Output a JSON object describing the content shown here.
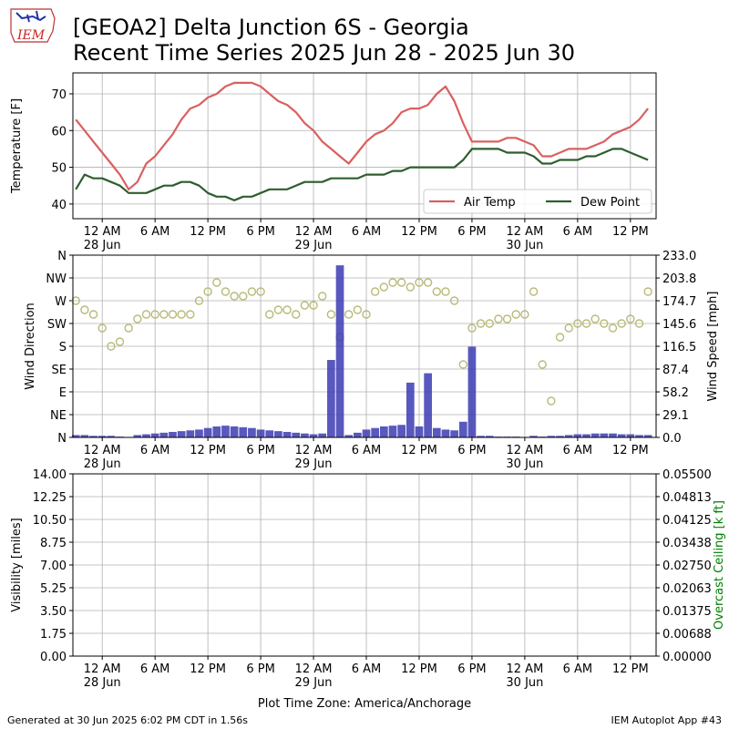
{
  "header": {
    "title_lines": [
      "[GEOA2] Delta Junction 6S - Georgia",
      "Recent Time Series 2025 Jun 28 - 2025 Jun 30"
    ],
    "logo": "IEM"
  },
  "footer": {
    "left": "Generated at 30 Jun 2025 6:02 PM CDT in 1.56s",
    "right": "IEM Autoplot App #43"
  },
  "chart_data": [
    {
      "type": "line",
      "ylabel": "Temperature [F]",
      "x": [
        "2025-06-27 21:00",
        "2025-06-27 22:00",
        "2025-06-27 23:00",
        "2025-06-28 00:00",
        "2025-06-28 01:00",
        "2025-06-28 02:00",
        "2025-06-28 03:00",
        "2025-06-28 04:00",
        "2025-06-28 05:00",
        "2025-06-28 06:00",
        "2025-06-28 07:00",
        "2025-06-28 08:00",
        "2025-06-28 09:00",
        "2025-06-28 10:00",
        "2025-06-28 11:00",
        "2025-06-28 12:00",
        "2025-06-28 13:00",
        "2025-06-28 14:00",
        "2025-06-28 15:00",
        "2025-06-28 16:00",
        "2025-06-28 17:00",
        "2025-06-28 18:00",
        "2025-06-28 19:00",
        "2025-06-28 20:00",
        "2025-06-28 21:00",
        "2025-06-28 22:00",
        "2025-06-28 23:00",
        "2025-06-29 00:00",
        "2025-06-29 01:00",
        "2025-06-29 02:00",
        "2025-06-29 03:00",
        "2025-06-29 04:00",
        "2025-06-29 05:00",
        "2025-06-29 06:00",
        "2025-06-29 07:00",
        "2025-06-29 08:00",
        "2025-06-29 09:00",
        "2025-06-29 10:00",
        "2025-06-29 11:00",
        "2025-06-29 12:00",
        "2025-06-29 13:00",
        "2025-06-29 14:00",
        "2025-06-29 15:00",
        "2025-06-29 16:00",
        "2025-06-29 17:00",
        "2025-06-29 18:00",
        "2025-06-29 19:00",
        "2025-06-29 20:00",
        "2025-06-29 21:00",
        "2025-06-29 22:00",
        "2025-06-29 23:00",
        "2025-06-30 00:00",
        "2025-06-30 01:00",
        "2025-06-30 02:00",
        "2025-06-30 03:00",
        "2025-06-30 04:00",
        "2025-06-30 05:00",
        "2025-06-30 06:00",
        "2025-06-30 07:00",
        "2025-06-30 08:00",
        "2025-06-30 09:00",
        "2025-06-30 10:00",
        "2025-06-30 11:00",
        "2025-06-30 12:00",
        "2025-06-30 13:00",
        "2025-06-30 14:00"
      ],
      "series": [
        {
          "name": "Air Temp",
          "color": "#d9605f",
          "values": [
            63,
            60,
            57,
            54,
            51,
            48,
            44,
            46,
            51,
            53,
            56,
            59,
            63,
            66,
            67,
            69,
            70,
            72,
            73,
            73,
            73,
            72,
            70,
            68,
            67,
            65,
            62,
            60,
            57,
            55,
            53,
            51,
            54,
            57,
            59,
            60,
            62,
            65,
            66,
            66,
            67,
            70,
            72,
            68,
            62,
            57,
            57,
            57,
            57,
            58,
            58,
            57,
            56,
            53,
            53,
            54,
            55,
            55,
            55,
            56,
            57,
            59,
            60,
            61,
            63,
            66
          ]
        },
        {
          "name": "Dew Point",
          "color": "#2e5e2e",
          "values": [
            44,
            48,
            47,
            47,
            46,
            45,
            43,
            43,
            43,
            44,
            45,
            45,
            46,
            46,
            45,
            43,
            42,
            42,
            41,
            42,
            42,
            43,
            44,
            44,
            44,
            45,
            46,
            46,
            46,
            47,
            47,
            47,
            47,
            48,
            48,
            48,
            49,
            49,
            50,
            50,
            50,
            50,
            50,
            50,
            52,
            55,
            55,
            55,
            55,
            54,
            54,
            54,
            53,
            51,
            51,
            52,
            52,
            52,
            53,
            53,
            54,
            55,
            55,
            54,
            53,
            52
          ]
        }
      ],
      "xlim": [
        "2025-06-27 20:40",
        "2025-06-30 14:55"
      ],
      "xticks": [
        {
          "value": "2025-06-28 00:00",
          "label": "12 AM\n28 Jun"
        },
        {
          "value": "2025-06-28 06:00",
          "label": "6 AM"
        },
        {
          "value": "2025-06-28 12:00",
          "label": "12 PM"
        },
        {
          "value": "2025-06-28 18:00",
          "label": "6 PM"
        },
        {
          "value": "2025-06-29 00:00",
          "label": "12 AM\n29 Jun"
        },
        {
          "value": "2025-06-29 06:00",
          "label": "6 AM"
        },
        {
          "value": "2025-06-29 12:00",
          "label": "12 PM"
        },
        {
          "value": "2025-06-29 18:00",
          "label": "6 PM"
        },
        {
          "value": "2025-06-30 00:00",
          "label": "12 AM\n30 Jun"
        },
        {
          "value": "2025-06-30 06:00",
          "label": "6 AM"
        },
        {
          "value": "2025-06-30 12:00",
          "label": "12 PM"
        }
      ],
      "ylim": [
        36,
        75.7
      ],
      "yticks": [
        40,
        50,
        60,
        70
      ],
      "grid": true,
      "legend": "lower right"
    },
    {
      "type": "scatter",
      "ylabel": "Wind Direction",
      "y2label": "Wind Speed [mph]",
      "x": [
        "2025-06-27 21:00",
        "2025-06-27 22:00",
        "2025-06-27 23:00",
        "2025-06-28 00:00",
        "2025-06-28 01:00",
        "2025-06-28 02:00",
        "2025-06-28 03:00",
        "2025-06-28 04:00",
        "2025-06-28 05:00",
        "2025-06-28 06:00",
        "2025-06-28 07:00",
        "2025-06-28 08:00",
        "2025-06-28 09:00",
        "2025-06-28 10:00",
        "2025-06-28 11:00",
        "2025-06-28 12:00",
        "2025-06-28 13:00",
        "2025-06-28 14:00",
        "2025-06-28 15:00",
        "2025-06-28 16:00",
        "2025-06-28 17:00",
        "2025-06-28 18:00",
        "2025-06-28 19:00",
        "2025-06-28 20:00",
        "2025-06-28 21:00",
        "2025-06-28 22:00",
        "2025-06-28 23:00",
        "2025-06-29 00:00",
        "2025-06-29 01:00",
        "2025-06-29 02:00",
        "2025-06-29 03:00",
        "2025-06-29 04:00",
        "2025-06-29 05:00",
        "2025-06-29 06:00",
        "2025-06-29 07:00",
        "2025-06-29 08:00",
        "2025-06-29 09:00",
        "2025-06-29 10:00",
        "2025-06-29 11:00",
        "2025-06-29 12:00",
        "2025-06-29 13:00",
        "2025-06-29 14:00",
        "2025-06-29 15:00",
        "2025-06-29 16:00",
        "2025-06-29 17:00",
        "2025-06-29 18:00",
        "2025-06-29 19:00",
        "2025-06-29 20:00",
        "2025-06-29 21:00",
        "2025-06-29 22:00",
        "2025-06-29 23:00",
        "2025-06-30 00:00",
        "2025-06-30 01:00",
        "2025-06-30 02:00",
        "2025-06-30 03:00",
        "2025-06-30 04:00",
        "2025-06-30 05:00",
        "2025-06-30 06:00",
        "2025-06-30 07:00",
        "2025-06-30 08:00",
        "2025-06-30 09:00",
        "2025-06-30 10:00",
        "2025-06-30 11:00",
        "2025-06-30 12:00",
        "2025-06-30 13:00",
        "2025-06-30 14:00"
      ],
      "series": [
        {
          "color": "#b9ba78",
          "values": [
            270,
            252,
            243,
            216,
            180,
            189,
            216,
            234,
            243,
            243,
            243,
            243,
            243,
            243,
            270,
            288,
            306,
            288,
            279,
            279,
            288,
            288,
            243,
            252,
            252,
            243,
            261,
            261,
            279,
            243,
            198,
            243,
            252,
            243,
            288,
            297,
            306,
            306,
            297,
            306,
            306,
            288,
            288,
            270,
            144,
            216,
            225,
            225,
            234,
            234,
            243,
            243,
            288,
            144,
            72,
            198,
            216,
            225,
            225,
            234,
            225,
            216,
            225,
            234,
            225,
            288
          ]
        },
        {
          "type": "bar",
          "axis": "y2",
          "color": "#3b3bb3",
          "values": [
            3,
            3,
            2,
            2,
            2,
            1,
            0,
            3,
            4,
            5,
            6,
            7,
            8,
            9,
            10,
            12,
            14,
            15,
            14,
            13,
            12,
            10,
            9,
            8,
            7,
            6,
            5,
            4,
            5,
            99,
            220,
            3,
            6,
            10,
            12,
            14,
            15,
            16,
            70,
            14,
            82,
            12,
            10,
            9,
            20,
            116,
            2,
            2,
            1,
            1,
            1,
            0,
            2,
            1,
            2,
            2,
            3,
            4,
            4,
            5,
            5,
            5,
            4,
            4,
            3,
            3
          ]
        }
      ],
      "xlim": [
        "2025-06-27 20:40",
        "2025-06-30 14:55"
      ],
      "xticks": [
        {
          "value": "2025-06-28 00:00",
          "label": "12 AM\n28 Jun"
        },
        {
          "value": "2025-06-28 06:00",
          "label": "6 AM"
        },
        {
          "value": "2025-06-28 12:00",
          "label": "12 PM"
        },
        {
          "value": "2025-06-28 18:00",
          "label": "6 PM"
        },
        {
          "value": "2025-06-29 00:00",
          "label": "12 AM\n29 Jun"
        },
        {
          "value": "2025-06-29 06:00",
          "label": "6 AM"
        },
        {
          "value": "2025-06-29 12:00",
          "label": "12 PM"
        },
        {
          "value": "2025-06-29 18:00",
          "label": "6 PM"
        },
        {
          "value": "2025-06-30 00:00",
          "label": "12 AM\n30 Jun"
        },
        {
          "value": "2025-06-30 06:00",
          "label": "6 AM"
        },
        {
          "value": "2025-06-30 12:00",
          "label": "12 PM"
        }
      ],
      "ylim": [
        0,
        360
      ],
      "yticks": [
        {
          "value": 0,
          "label": "N"
        },
        {
          "value": 45,
          "label": "NE"
        },
        {
          "value": 90,
          "label": "E"
        },
        {
          "value": 135,
          "label": "SE"
        },
        {
          "value": 180,
          "label": "S"
        },
        {
          "value": 225,
          "label": "SW"
        },
        {
          "value": 270,
          "label": "W"
        },
        {
          "value": 315,
          "label": "NW"
        },
        {
          "value": 360,
          "label": "N"
        }
      ],
      "y2lim": [
        0,
        233
      ],
      "y2ticks": [
        {
          "value": 0,
          "label": "0.0"
        },
        29.1,
        58.2,
        87.4,
        116.5,
        145.6,
        174.7,
        203.8,
        {
          "value": 233,
          "label": "233.0"
        }
      ],
      "grid": true
    },
    {
      "type": "line",
      "ylabel": "Visibility [miles]",
      "y2label": "Overcast Ceiling [k ft]",
      "y2label_color": "#008000",
      "xlabel": "Plot Time Zone: America/Anchorage",
      "xlim": [
        "2025-06-27 20:40",
        "2025-06-30 14:55"
      ],
      "xticks": [
        {
          "value": "2025-06-28 00:00",
          "label": "12 AM\n28 Jun"
        },
        {
          "value": "2025-06-28 06:00",
          "label": "6 AM"
        },
        {
          "value": "2025-06-28 12:00",
          "label": "12 PM"
        },
        {
          "value": "2025-06-28 18:00",
          "label": "6 PM"
        },
        {
          "value": "2025-06-29 00:00",
          "label": "12 AM\n29 Jun"
        },
        {
          "value": "2025-06-29 06:00",
          "label": "6 AM"
        },
        {
          "value": "2025-06-29 12:00",
          "label": "12 PM"
        },
        {
          "value": "2025-06-29 18:00",
          "label": "6 PM"
        },
        {
          "value": "2025-06-30 00:00",
          "label": "12 AM\n30 Jun"
        },
        {
          "value": "2025-06-30 06:00",
          "label": "6 AM"
        },
        {
          "value": "2025-06-30 12:00",
          "label": "12 PM"
        }
      ],
      "ylim": [
        0,
        14
      ],
      "yticks": [
        {
          "value": 0,
          "label": "0.00"
        },
        1.75,
        {
          "value": 3.5,
          "label": "3.50"
        },
        5.25,
        {
          "value": 7,
          "label": "7.00"
        },
        8.75,
        {
          "value": 10.5,
          "label": "10.50"
        },
        12.25,
        {
          "value": 14,
          "label": "14.00"
        }
      ],
      "y2lim": [
        0,
        0.055
      ],
      "y2ticks": [
        {
          "value": 0,
          "label": "0.00000"
        },
        0.00688,
        0.01375,
        0.02063,
        {
          "value": 0.0275,
          "label": "0.02750"
        },
        0.03438,
        0.04125,
        0.04813,
        {
          "value": 0.055,
          "label": "0.05500"
        }
      ],
      "grid": true
    }
  ]
}
